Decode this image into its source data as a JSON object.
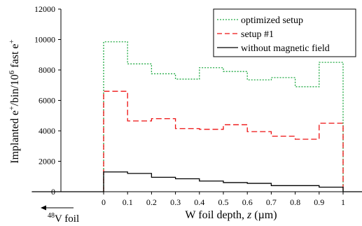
{
  "chart_data": {
    "type": "line",
    "title": "",
    "xlabel_parts": [
      "W foil depth, ",
      "z",
      " (µm)"
    ],
    "ylabel_parts": [
      "Implanted e",
      "+",
      "/bin/10",
      "6",
      " fast e",
      "+"
    ],
    "x_ticks": [
      "0",
      "0.1",
      "0.2",
      "0.3",
      "0.4",
      "0.5",
      "0.6",
      "0.7",
      "0.8",
      "0.9",
      "1"
    ],
    "y_ticks": [
      "0",
      "2000",
      "4000",
      "6000",
      "8000",
      "10000",
      "12000"
    ],
    "xlim": [
      -0.35,
      1.15
    ],
    "ylim": [
      0,
      12000
    ],
    "bin_edges": [
      0,
      0.1,
      0.2,
      0.3,
      0.4,
      0.5,
      0.6,
      0.7,
      0.8,
      0.9,
      1.0
    ],
    "series": [
      {
        "name": "optimized setup",
        "color": "#22aa44",
        "dash": "dotted",
        "values": [
          9850,
          8400,
          7750,
          7400,
          8150,
          7900,
          7350,
          7500,
          6900,
          8500
        ]
      },
      {
        "name": "setup #1",
        "color": "#ee1111",
        "dash": "dashed",
        "values": [
          6600,
          4650,
          4800,
          4150,
          4100,
          4400,
          3950,
          3650,
          3450,
          4500
        ]
      },
      {
        "name": "without magnetic field",
        "color": "#000000",
        "dash": "solid",
        "values": [
          1300,
          1200,
          950,
          850,
          700,
          600,
          550,
          400,
          400,
          300
        ],
        "baseline_before": [
          -0.3,
          0
        ],
        "baseline_after": [
          1,
          1.15
        ]
      }
    ],
    "legend_position": "top-right",
    "annotation": {
      "arrow": "left",
      "superscript": "48",
      "text": "V foil"
    },
    "grid": false
  }
}
